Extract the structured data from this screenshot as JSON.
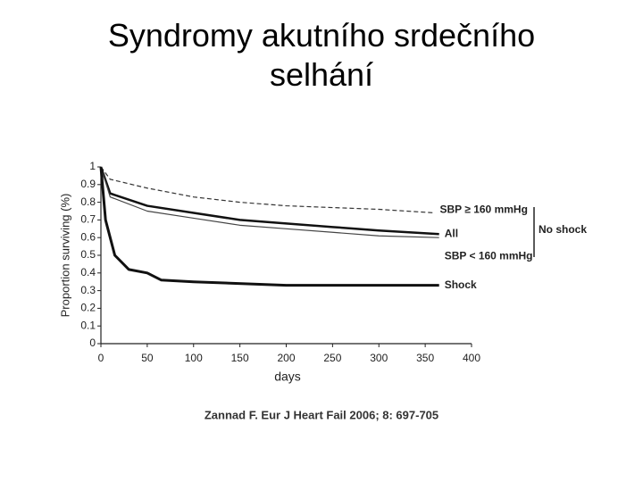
{
  "chart_data": {
    "type": "line",
    "title": "Syndromy akutního srdečního selhání",
    "y_label": "Proportion surviving (%)",
    "x_label": "days",
    "source": "Zannad F. Eur J Heart Fail 2006; 8: 697-705",
    "annotation": "No shock",
    "xlim": [
      0,
      400
    ],
    "xticks": [
      0,
      50,
      100,
      150,
      200,
      250,
      300,
      350,
      400
    ],
    "ylim": [
      0,
      1
    ],
    "yticks": [
      0,
      0.1,
      0.2,
      0.3,
      0.4,
      0.5,
      0.6,
      0.7,
      0.8,
      0.9,
      1
    ],
    "series": [
      {
        "name": "SBP ≥ 160 mmHg",
        "color": "#333333",
        "line_width": 1.2,
        "dashed": true,
        "x": [
          0,
          10,
          50,
          100,
          150,
          200,
          250,
          300,
          360
        ],
        "values": [
          1,
          0.93,
          0.88,
          0.83,
          0.8,
          0.78,
          0.77,
          0.76,
          0.74
        ]
      },
      {
        "name": "All",
        "color": "#111111",
        "line_width": 2.5,
        "dashed": false,
        "x": [
          0,
          10,
          50,
          100,
          150,
          200,
          250,
          300,
          365
        ],
        "values": [
          1,
          0.85,
          0.78,
          0.74,
          0.7,
          0.68,
          0.66,
          0.64,
          0.62
        ]
      },
      {
        "name": "SBP < 160 mmHg",
        "color": "#444444",
        "line_width": 1.2,
        "dashed": false,
        "x": [
          0,
          10,
          50,
          100,
          150,
          200,
          250,
          300,
          365
        ],
        "values": [
          1,
          0.83,
          0.75,
          0.71,
          0.67,
          0.65,
          0.63,
          0.61,
          0.6
        ]
      },
      {
        "name": "Shock",
        "color": "#111111",
        "line_width": 3,
        "dashed": false,
        "x": [
          0,
          5,
          15,
          30,
          50,
          65,
          100,
          200,
          365
        ],
        "values": [
          1,
          0.7,
          0.5,
          0.42,
          0.4,
          0.36,
          0.35,
          0.33,
          0.33
        ]
      }
    ]
  }
}
